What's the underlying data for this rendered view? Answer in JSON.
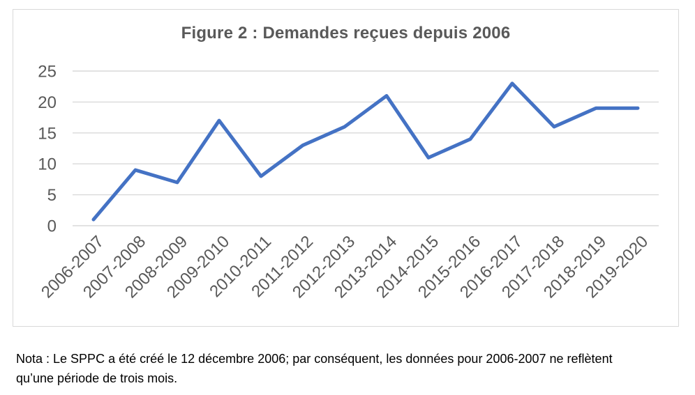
{
  "figure": {
    "title": "Figure 2 : Demandes reçues depuis 2006",
    "note": "Nota : Le SPPC a été créé le 12 décembre 2006; par conséquent, les données pour 2006-2007 ne reflètent qu’une période de trois mois."
  },
  "colors": {
    "line": "#4472C4",
    "gridline": "#D9D9D9",
    "axis_text": "#595959",
    "title_text": "#595959",
    "note_text": "#000000",
    "frame_border": "#D9D9D9"
  },
  "chart_data": {
    "type": "line",
    "title": "Figure 2 : Demandes reçues depuis 2006",
    "categories": [
      "2006-2007",
      "2007-2008",
      "2008-2009",
      "2009-2010",
      "2010-2011",
      "2011-2012",
      "2012-2013",
      "2013-2014",
      "2014-2015",
      "2015-2016",
      "2016-2017",
      "2017-2018",
      "2018-2019",
      "2019-2020"
    ],
    "values": [
      1,
      9,
      7,
      17,
      8,
      13,
      16,
      21,
      11,
      14,
      23,
      16,
      19,
      19
    ],
    "xlabel": "",
    "ylabel": "",
    "ylim": [
      0,
      25
    ],
    "yticks": [
      0,
      5,
      10,
      15,
      20,
      25
    ],
    "grid": true,
    "legend": false,
    "x_tick_rotation": -45
  }
}
